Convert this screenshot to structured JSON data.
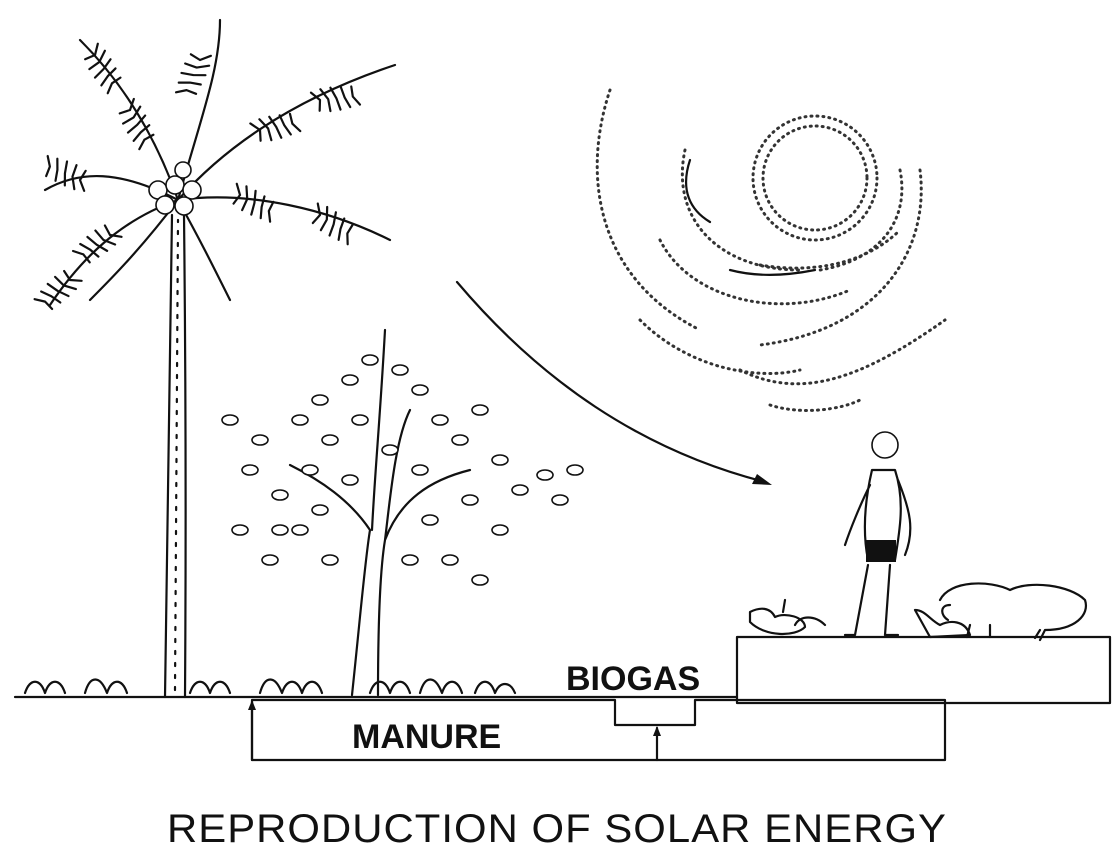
{
  "labels": {
    "biogas": "BIOGAS",
    "manure": "MANURE"
  },
  "caption": "REPRODUCTION OF SOLAR ENERGY"
}
